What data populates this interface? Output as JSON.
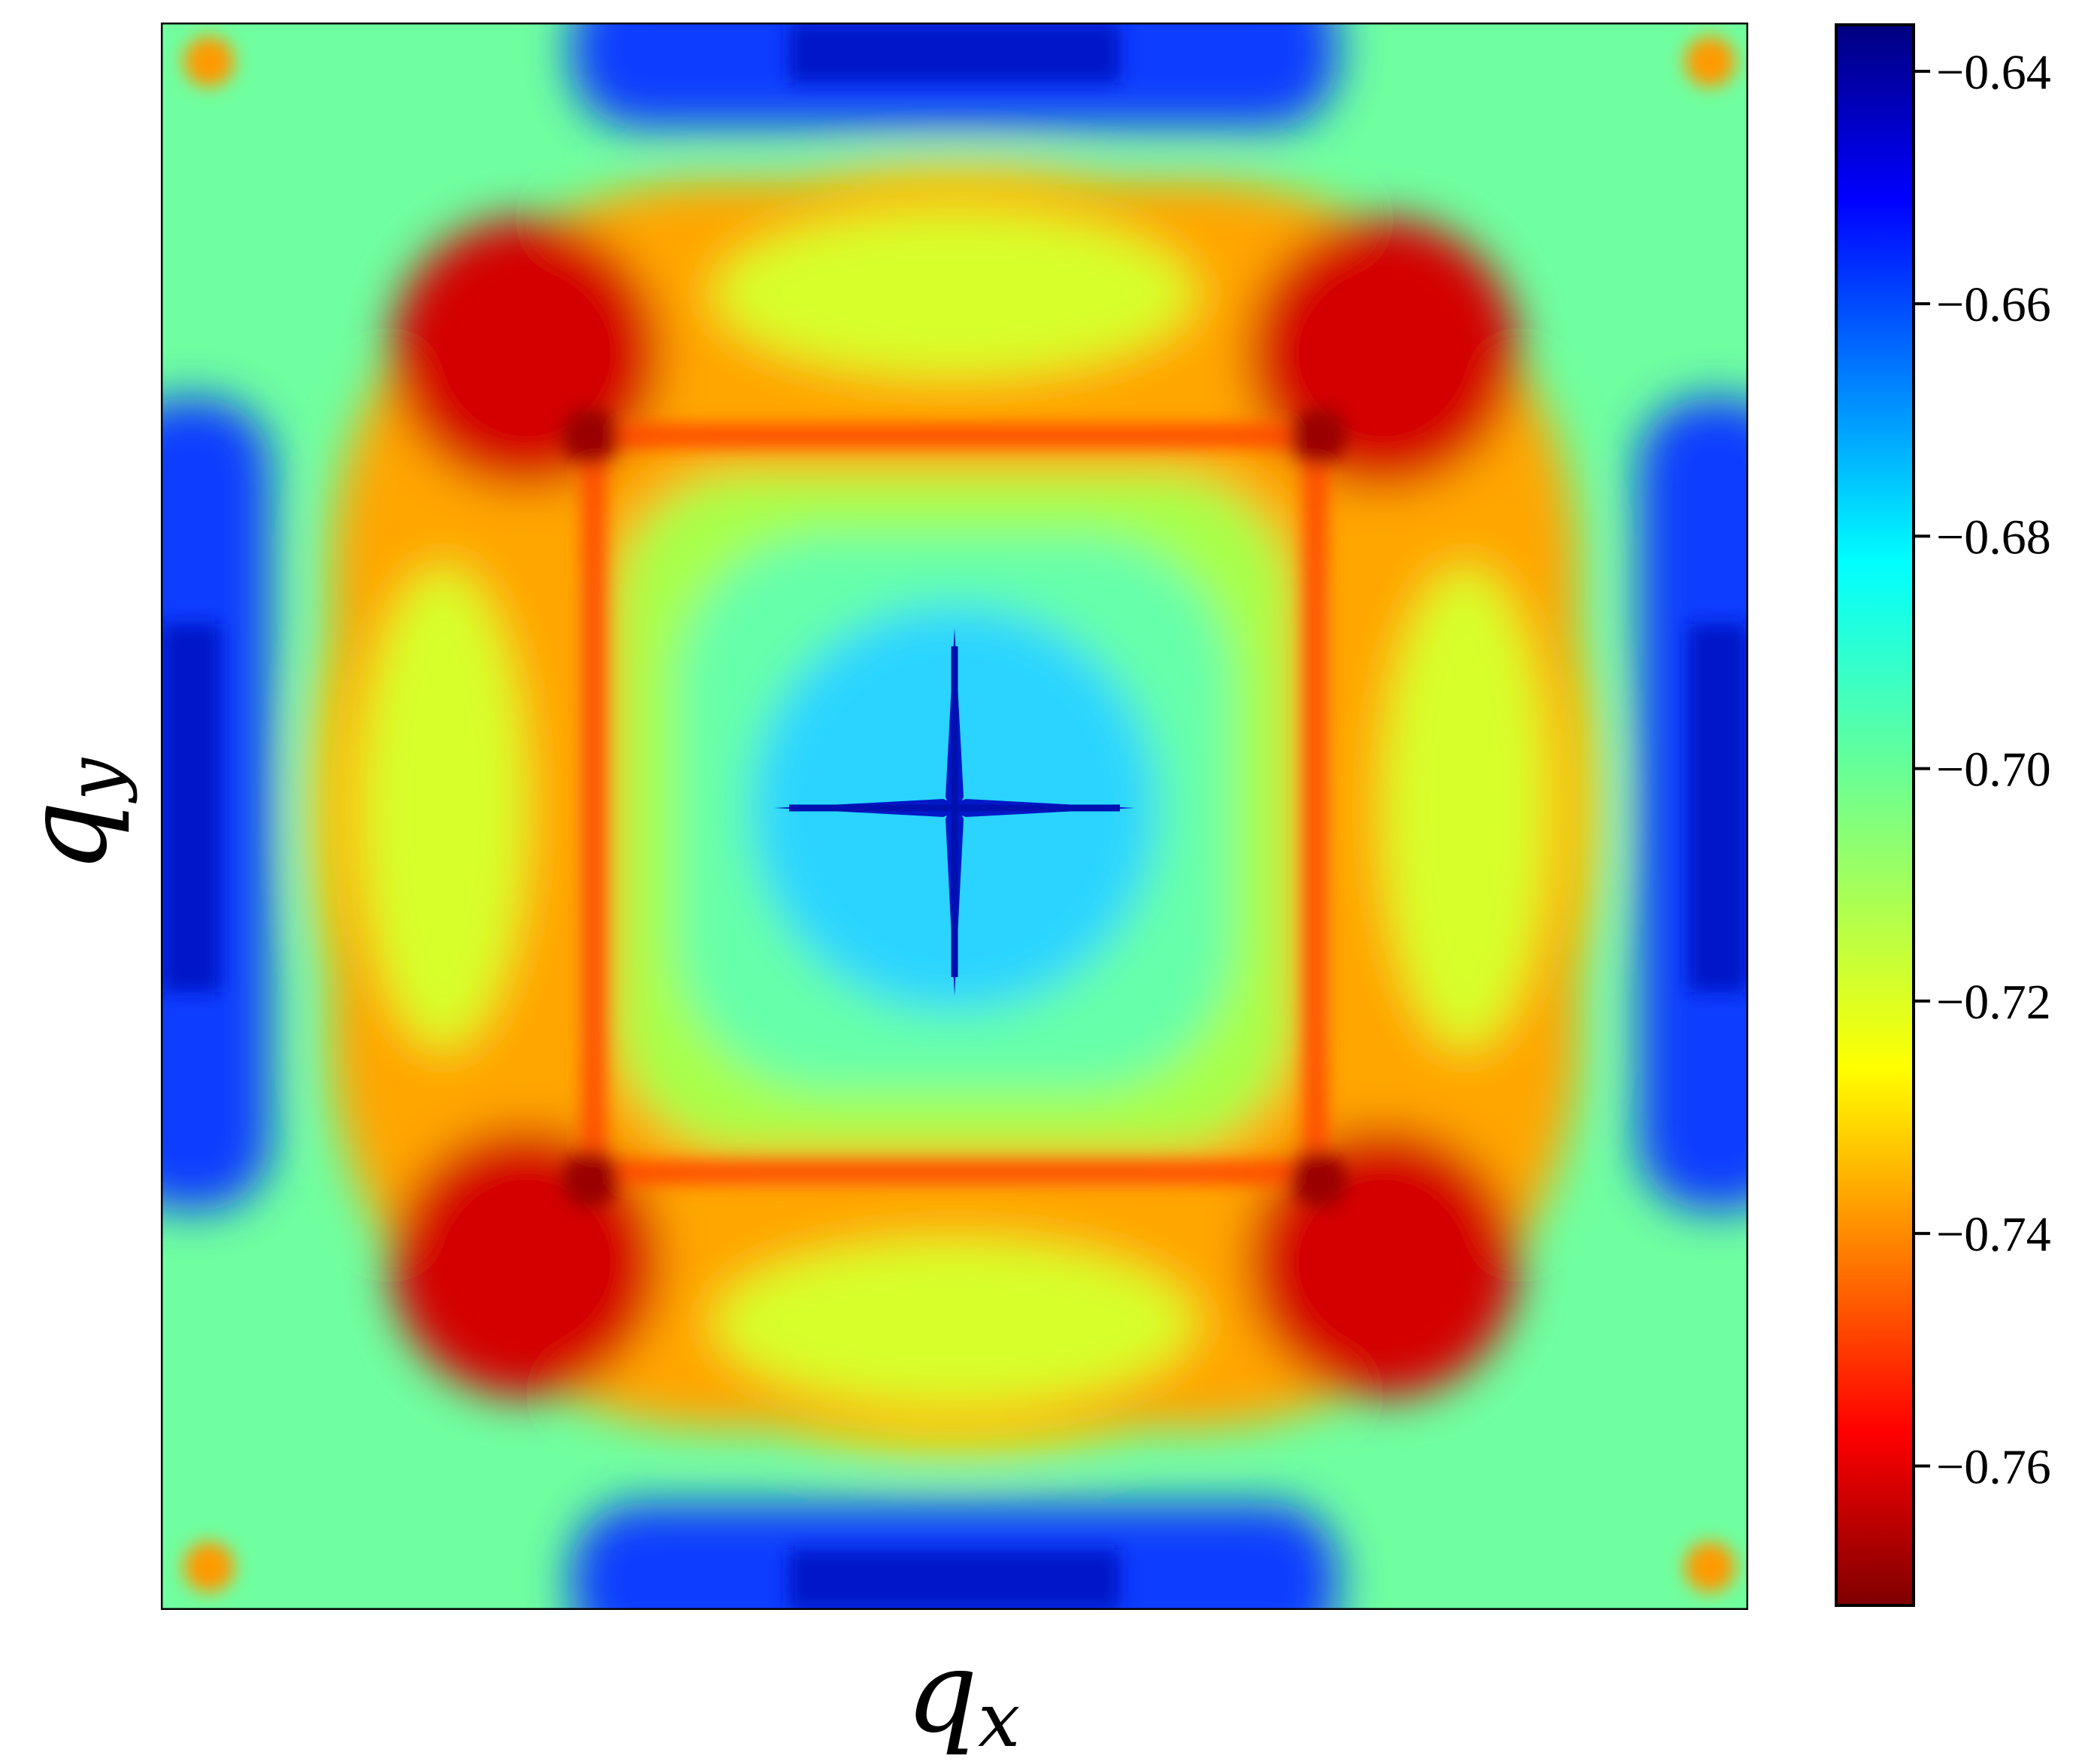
{
  "chart_data": {
    "type": "heatmap",
    "title": "",
    "xlabel": "q",
    "xlabel_sub": "x",
    "ylabel": "q",
    "ylabel_sub": "y",
    "x_ticks": [],
    "y_ticks": [],
    "colorbar": {
      "colormap": "jet",
      "range": [
        -0.772,
        -0.636
      ],
      "ticks": [
        -0.64,
        -0.66,
        -0.68,
        -0.7,
        -0.72,
        -0.74,
        -0.76
      ],
      "tick_labels": [
        "−0.64",
        "−0.66",
        "−0.68",
        "−0.70",
        "−0.72",
        "−0.74",
        "−0.76"
      ]
    },
    "regions": [
      {
        "name": "four corner lobes",
        "value": -0.765
      },
      {
        "name": "inner square boundary ridge",
        "value": -0.75
      },
      {
        "name": "top and bottom bands",
        "value": -0.652
      },
      {
        "name": "left and right bands",
        "value": -0.652
      },
      {
        "name": "central cross",
        "value": -0.655
      },
      {
        "name": "central region",
        "value": -0.69
      },
      {
        "name": "outer background",
        "value": -0.7
      }
    ]
  }
}
